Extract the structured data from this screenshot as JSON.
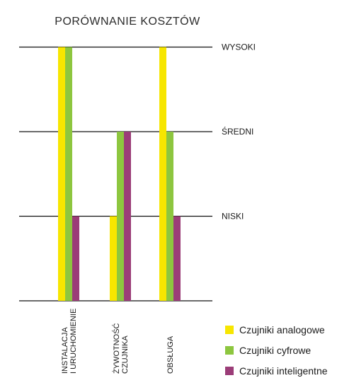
{
  "chart_data": {
    "type": "bar",
    "title": "PORÓWNANIE KOSZTÓW",
    "xlabel": "",
    "ylabel": "",
    "y_levels": [
      {
        "label": "NISKI",
        "value": 1
      },
      {
        "label": "ŚREDNI",
        "value": 2
      },
      {
        "label": "WYSOKI",
        "value": 3
      }
    ],
    "ylim": [
      0,
      3
    ],
    "grid": true,
    "categories": [
      [
        "INSTALACJA",
        "I URUCHOMIENIE"
      ],
      [
        "ŻYWOTNOŚĆ",
        "CZUJNIKA"
      ],
      [
        "OBSŁUGA"
      ]
    ],
    "series": [
      {
        "name": "Czujniki analogowe",
        "color": "#f7e600",
        "values": [
          3,
          1,
          3
        ]
      },
      {
        "name": "Czujniki cyfrowe",
        "color": "#8dc63f",
        "values": [
          3,
          2,
          2
        ]
      },
      {
        "name": "Czujniki inteligentne",
        "color": "#9b3d78",
        "values": [
          1,
          2,
          1
        ]
      }
    ],
    "legend_position": "bottom-right"
  }
}
